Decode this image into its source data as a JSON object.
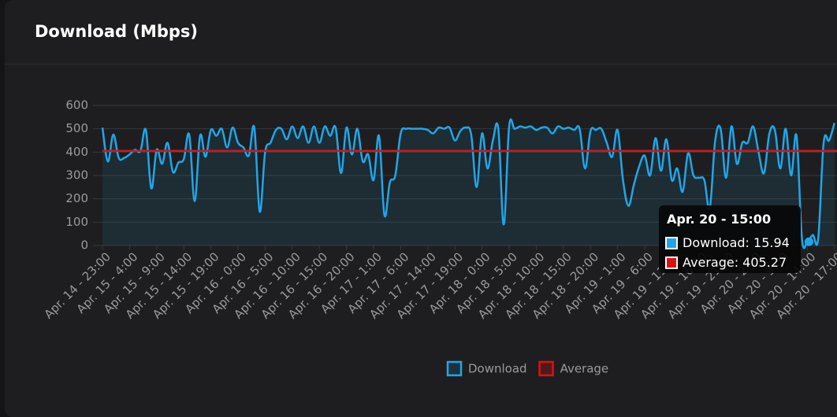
{
  "chart_data": {
    "type": "line",
    "title": "Download (Mbps)",
    "categories": [
      "Apr. 14 - 23:00",
      null,
      null,
      null,
      null,
      "Apr. 15 - 4:00",
      null,
      null,
      null,
      null,
      "Apr. 15 - 9:00",
      null,
      null,
      null,
      null,
      "Apr. 15 - 14:00",
      null,
      null,
      null,
      null,
      "Apr. 15 - 19:00",
      null,
      null,
      null,
      null,
      "Apr. 16 - 0:00",
      null,
      null,
      null,
      null,
      "Apr. 16 - 5:00",
      null,
      null,
      null,
      null,
      "Apr. 16 - 10:00",
      null,
      null,
      null,
      null,
      "Apr. 16 - 15:00",
      null,
      null,
      null,
      null,
      "Apr. 16 - 20:00",
      null,
      null,
      null,
      null,
      "Apr. 17 - 1:00",
      null,
      null,
      null,
      null,
      "Apr. 17 - 6:00",
      null,
      null,
      null,
      null,
      "Apr. 17 - 14:00",
      null,
      null,
      null,
      null,
      "Apr. 17 - 19:00",
      null,
      null,
      null,
      null,
      "Apr. 18 - 0:00",
      null,
      null,
      null,
      null,
      "Apr. 18 - 5:00",
      null,
      null,
      null,
      null,
      "Apr. 18 - 10:00",
      null,
      null,
      null,
      null,
      "Apr. 18 - 15:00",
      null,
      null,
      null,
      null,
      "Apr. 18 - 20:00",
      null,
      null,
      null,
      null,
      "Apr. 19 - 1:00",
      null,
      null,
      null,
      null,
      "Apr. 19 - 6:00",
      null,
      null,
      null,
      null,
      "Apr. 19 - 11:00",
      null,
      null,
      null,
      null,
      "Apr. 19 - 16:00",
      null,
      null,
      null,
      null,
      "Apr. 19 - 21:00",
      null,
      null,
      null,
      null,
      "Apr. 20 - 2:00",
      null,
      null,
      null,
      null,
      "Apr. 20 - 9:00",
      null,
      null,
      null,
      null,
      "Apr. 20 - 14:00",
      null,
      null,
      null,
      null,
      "Apr. 20 - 17:00"
    ],
    "series": [
      {
        "name": "Download",
        "color": "#1ea7e8",
        "values": [
          505,
          360,
          475,
          375,
          375,
          390,
          410,
          405,
          495,
          245,
          410,
          350,
          440,
          315,
          355,
          370,
          475,
          190,
          470,
          380,
          495,
          470,
          500,
          420,
          505,
          440,
          420,
          385,
          505,
          145,
          400,
          440,
          495,
          500,
          455,
          510,
          460,
          510,
          440,
          510,
          440,
          510,
          470,
          505,
          310,
          505,
          390,
          500,
          360,
          390,
          280,
          470,
          130,
          270,
          300,
          480,
          500,
          500,
          500,
          500,
          495,
          480,
          505,
          500,
          505,
          450,
          490,
          505,
          475,
          250,
          480,
          330,
          450,
          500,
          90,
          510,
          500,
          510,
          505,
          510,
          495,
          505,
          505,
          480,
          510,
          500,
          505,
          495,
          500,
          330,
          490,
          495,
          500,
          440,
          380,
          495,
          280,
          170,
          260,
          340,
          385,
          300,
          460,
          320,
          455,
          280,
          330,
          230,
          395,
          300,
          290,
          280,
          160,
          450,
          500,
          290,
          510,
          350,
          440,
          440,
          510,
          400,
          310,
          480,
          495,
          330,
          500,
          300,
          470,
          30,
          15.94,
          45,
          30,
          440,
          450,
          525
        ]
      },
      {
        "name": "Average",
        "color": "#e01010",
        "value": 405.27
      }
    ],
    "ylim": [
      0,
      600
    ],
    "yticks": [
      0,
      100,
      200,
      300,
      400,
      500,
      600
    ],
    "grid": true,
    "legend": "bottom",
    "tooltip": {
      "title": "Apr. 20 - 15:00",
      "lines": [
        "Download: 15.94",
        "Average: 405.27"
      ]
    }
  }
}
